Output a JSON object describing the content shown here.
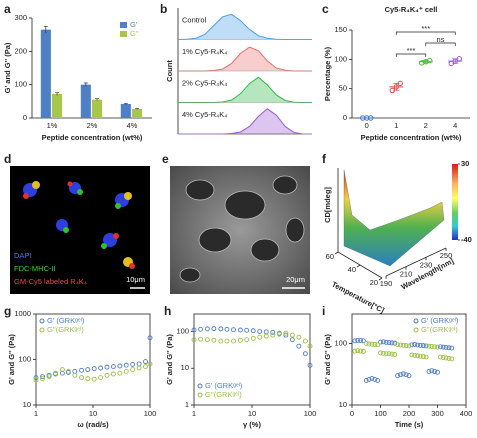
{
  "chart_data": [
    {
      "label": "a",
      "type": "bar",
      "categories": [
        "1%",
        "2%",
        "4%"
      ],
      "series": [
        {
          "name": "G'",
          "color": "#4f7fc4",
          "values": [
            265,
            100,
            42
          ],
          "errors": [
            10,
            5,
            2
          ]
        },
        {
          "name": "G''",
          "color": "#a9c64c",
          "values": [
            72,
            55,
            27
          ],
          "errors": [
            4,
            3,
            2
          ]
        }
      ],
      "ylim": [
        0,
        300
      ],
      "yticks": [
        0,
        100,
        200,
        300
      ],
      "x_label": "Peptide concentration (wt%)",
      "y_label": "G' and G'' (Pa)",
      "legend": "top-right"
    },
    {
      "label": "b",
      "type": "ridgeline",
      "y_label": "Count",
      "series": [
        {
          "name": "Control",
          "color": "#4a9ee8",
          "values": [
            0,
            0.01,
            0.05,
            0.2,
            0.55,
            0.9,
            1,
            0.75,
            0.4,
            0.15,
            0.05,
            0.01,
            0,
            0,
            0,
            0
          ]
        },
        {
          "name": "1% Cy5-R₄K₄",
          "color": "#e86f6f",
          "values": [
            0,
            0,
            0,
            0,
            0.02,
            0.08,
            0.3,
            0.7,
            0.95,
            0.8,
            0.4,
            0.12,
            0.03,
            0,
            0,
            0
          ]
        },
        {
          "name": "2% Cy5-R₄K₄",
          "color": "#2fb845",
          "values": [
            0,
            0,
            0,
            0,
            0,
            0.02,
            0.1,
            0.35,
            0.75,
            1,
            0.7,
            0.3,
            0.08,
            0.01,
            0,
            0
          ]
        },
        {
          "name": "4% Cy5-R₄K₄",
          "color": "#9b59d0",
          "values": [
            0,
            0,
            0,
            0,
            0,
            0,
            0.02,
            0.08,
            0.3,
            0.7,
            1,
            0.75,
            0.3,
            0.06,
            0,
            0
          ]
        }
      ]
    },
    {
      "label": "c",
      "type": "dotplot",
      "title": "Cy5-R₄K₄⁺ cell",
      "categories": [
        "0",
        "1",
        "2",
        "4"
      ],
      "values": [
        0,
        53,
        96,
        97
      ],
      "errors": [
        0,
        6,
        2,
        4
      ],
      "points": [
        [
          0,
          0,
          0
        ],
        [
          47,
          53,
          59
        ],
        [
          94,
          96,
          98
        ],
        [
          93,
          97,
          101
        ]
      ],
      "colors": [
        "#3f6fd0",
        "#e04a4a",
        "#4cb83c",
        "#9b59d0"
      ],
      "ylim": [
        0,
        150
      ],
      "yticks": [
        0,
        50,
        100,
        150
      ],
      "x_label": "Peptide concentration (wt%)",
      "y_label": "Percentage (%)",
      "comparisons": [
        {
          "between": [
            "1",
            "4"
          ],
          "label": "***"
        },
        {
          "between": [
            "2",
            "4"
          ],
          "label": "ns"
        },
        {
          "between": [
            "1",
            "2"
          ],
          "label": "***"
        }
      ]
    },
    {
      "label": "f",
      "type": "surface",
      "z_label": "CD[mdeg]",
      "y_label": "Temperature[°C]",
      "x_label": "Wavelength[nm]",
      "xlim": [
        190,
        250
      ],
      "xticks": [
        190,
        210,
        230,
        250
      ],
      "ylim": [
        20,
        60
      ],
      "yticks": [
        60,
        40,
        20
      ],
      "clim": [
        -40,
        30
      ],
      "cticks": [
        30,
        -40
      ]
    },
    {
      "label": "g",
      "type": "scatter",
      "xscale": "log",
      "yscale": "log",
      "x": [
        1,
        1.3,
        1.7,
        2.2,
        2.9,
        3.7,
        4.8,
        6.3,
        8.1,
        10.5,
        13.6,
        17.6,
        22.8,
        29.6,
        38.3,
        49.6,
        64.3,
        83.3,
        100
      ],
      "xlim": [
        1,
        100
      ],
      "xticks": [
        1,
        10,
        100
      ],
      "ylim": [
        10,
        1000
      ],
      "yticks": [
        10,
        100,
        1000
      ],
      "x_label": "ω (rad/s)",
      "y_label": "G' and G'' (Pa)",
      "legend": "top-left",
      "series": [
        {
          "name": "G' (GRKᵍᵉˡ)",
          "color": "#4f7fc4",
          "values": [
            40,
            42,
            45,
            48,
            50,
            52,
            55,
            58,
            60,
            63,
            65,
            68,
            70,
            72,
            75,
            78,
            80,
            90,
            300
          ]
        },
        {
          "name": "G''(GRKᵍᵉˡ)",
          "color": "#9cc043",
          "values": [
            35,
            38,
            42,
            50,
            60,
            55,
            45,
            40,
            38,
            37,
            40,
            45,
            48,
            50,
            55,
            60,
            65,
            70,
            80
          ]
        }
      ]
    },
    {
      "label": "h",
      "type": "scatter",
      "xscale": "log",
      "yscale": "log",
      "x": [
        1,
        1.3,
        1.7,
        2.2,
        2.9,
        3.7,
        4.8,
        6.3,
        8.1,
        10.5,
        13.6,
        17.6,
        22.8,
        29.6,
        38.3,
        49.6,
        64.3,
        83.3,
        100
      ],
      "xlim": [
        1,
        100
      ],
      "xticks": [
        1,
        10,
        100
      ],
      "ylim": [
        1,
        300
      ],
      "yticks": [
        1,
        10,
        100
      ],
      "x_label": "γ (%)",
      "y_label": "G' and G'' (Pa)",
      "legend": "bottom-left",
      "series": [
        {
          "name": "G' (GRKᵍᵉˡ)",
          "color": "#4f7fc4",
          "values": [
            110,
            115,
            118,
            120,
            118,
            115,
            112,
            110,
            108,
            105,
            100,
            98,
            95,
            90,
            80,
            60,
            40,
            25,
            12
          ]
        },
        {
          "name": "G''(GRKᵍᵉˡ)",
          "color": "#9cc043",
          "values": [
            60,
            62,
            60,
            58,
            55,
            55,
            55,
            58,
            60,
            65,
            70,
            75,
            80,
            85,
            90,
            80,
            70,
            55,
            40
          ]
        }
      ]
    },
    {
      "label": "i",
      "type": "scatter",
      "yscale": "log",
      "x": [
        10,
        20,
        30,
        40,
        50,
        60,
        70,
        80,
        90,
        100,
        110,
        120,
        130,
        140,
        150,
        160,
        170,
        180,
        190,
        200,
        210,
        220,
        230,
        240,
        250,
        260,
        270,
        280,
        290,
        300,
        310,
        320,
        330,
        340,
        350
      ],
      "xlim": [
        0,
        400
      ],
      "xticks": [
        0,
        100,
        200,
        300,
        400
      ],
      "ylim": [
        10,
        300
      ],
      "yticks": [
        10,
        100
      ],
      "x_label": "Time (s)",
      "y_label": "G' and G'' (Pa)",
      "legend": "top-right",
      "series": [
        {
          "name": "G' (GRKᵍᵉˡ)",
          "color": "#4f7fc4",
          "values": [
            110,
            112,
            111,
            110,
            25,
            26,
            27,
            26,
            25,
            105,
            106,
            104,
            103,
            102,
            101,
            30,
            31,
            32,
            31,
            30,
            95,
            96,
            94,
            93,
            92,
            91,
            35,
            36,
            35,
            34,
            88,
            87,
            86,
            85,
            84
          ]
        },
        {
          "name": "G''(GRKᵍᵉˡ)",
          "color": "#9cc043",
          "values": [
            75,
            76,
            75,
            74,
            100,
            98,
            97,
            96,
            95,
            70,
            69,
            68,
            68,
            67,
            66,
            95,
            94,
            93,
            92,
            91,
            65,
            64,
            63,
            62,
            61,
            60,
            90,
            89,
            88,
            87,
            60,
            59,
            58,
            57,
            56
          ]
        }
      ]
    }
  ],
  "images": [
    {
      "label": "d",
      "legend": [
        "DAPI",
        "FDC-MHC-II",
        "GM-Cy5 labeled R₄K₄"
      ],
      "scale_bar": "10μm"
    },
    {
      "label": "e",
      "scale_bar": "20μm"
    }
  ]
}
